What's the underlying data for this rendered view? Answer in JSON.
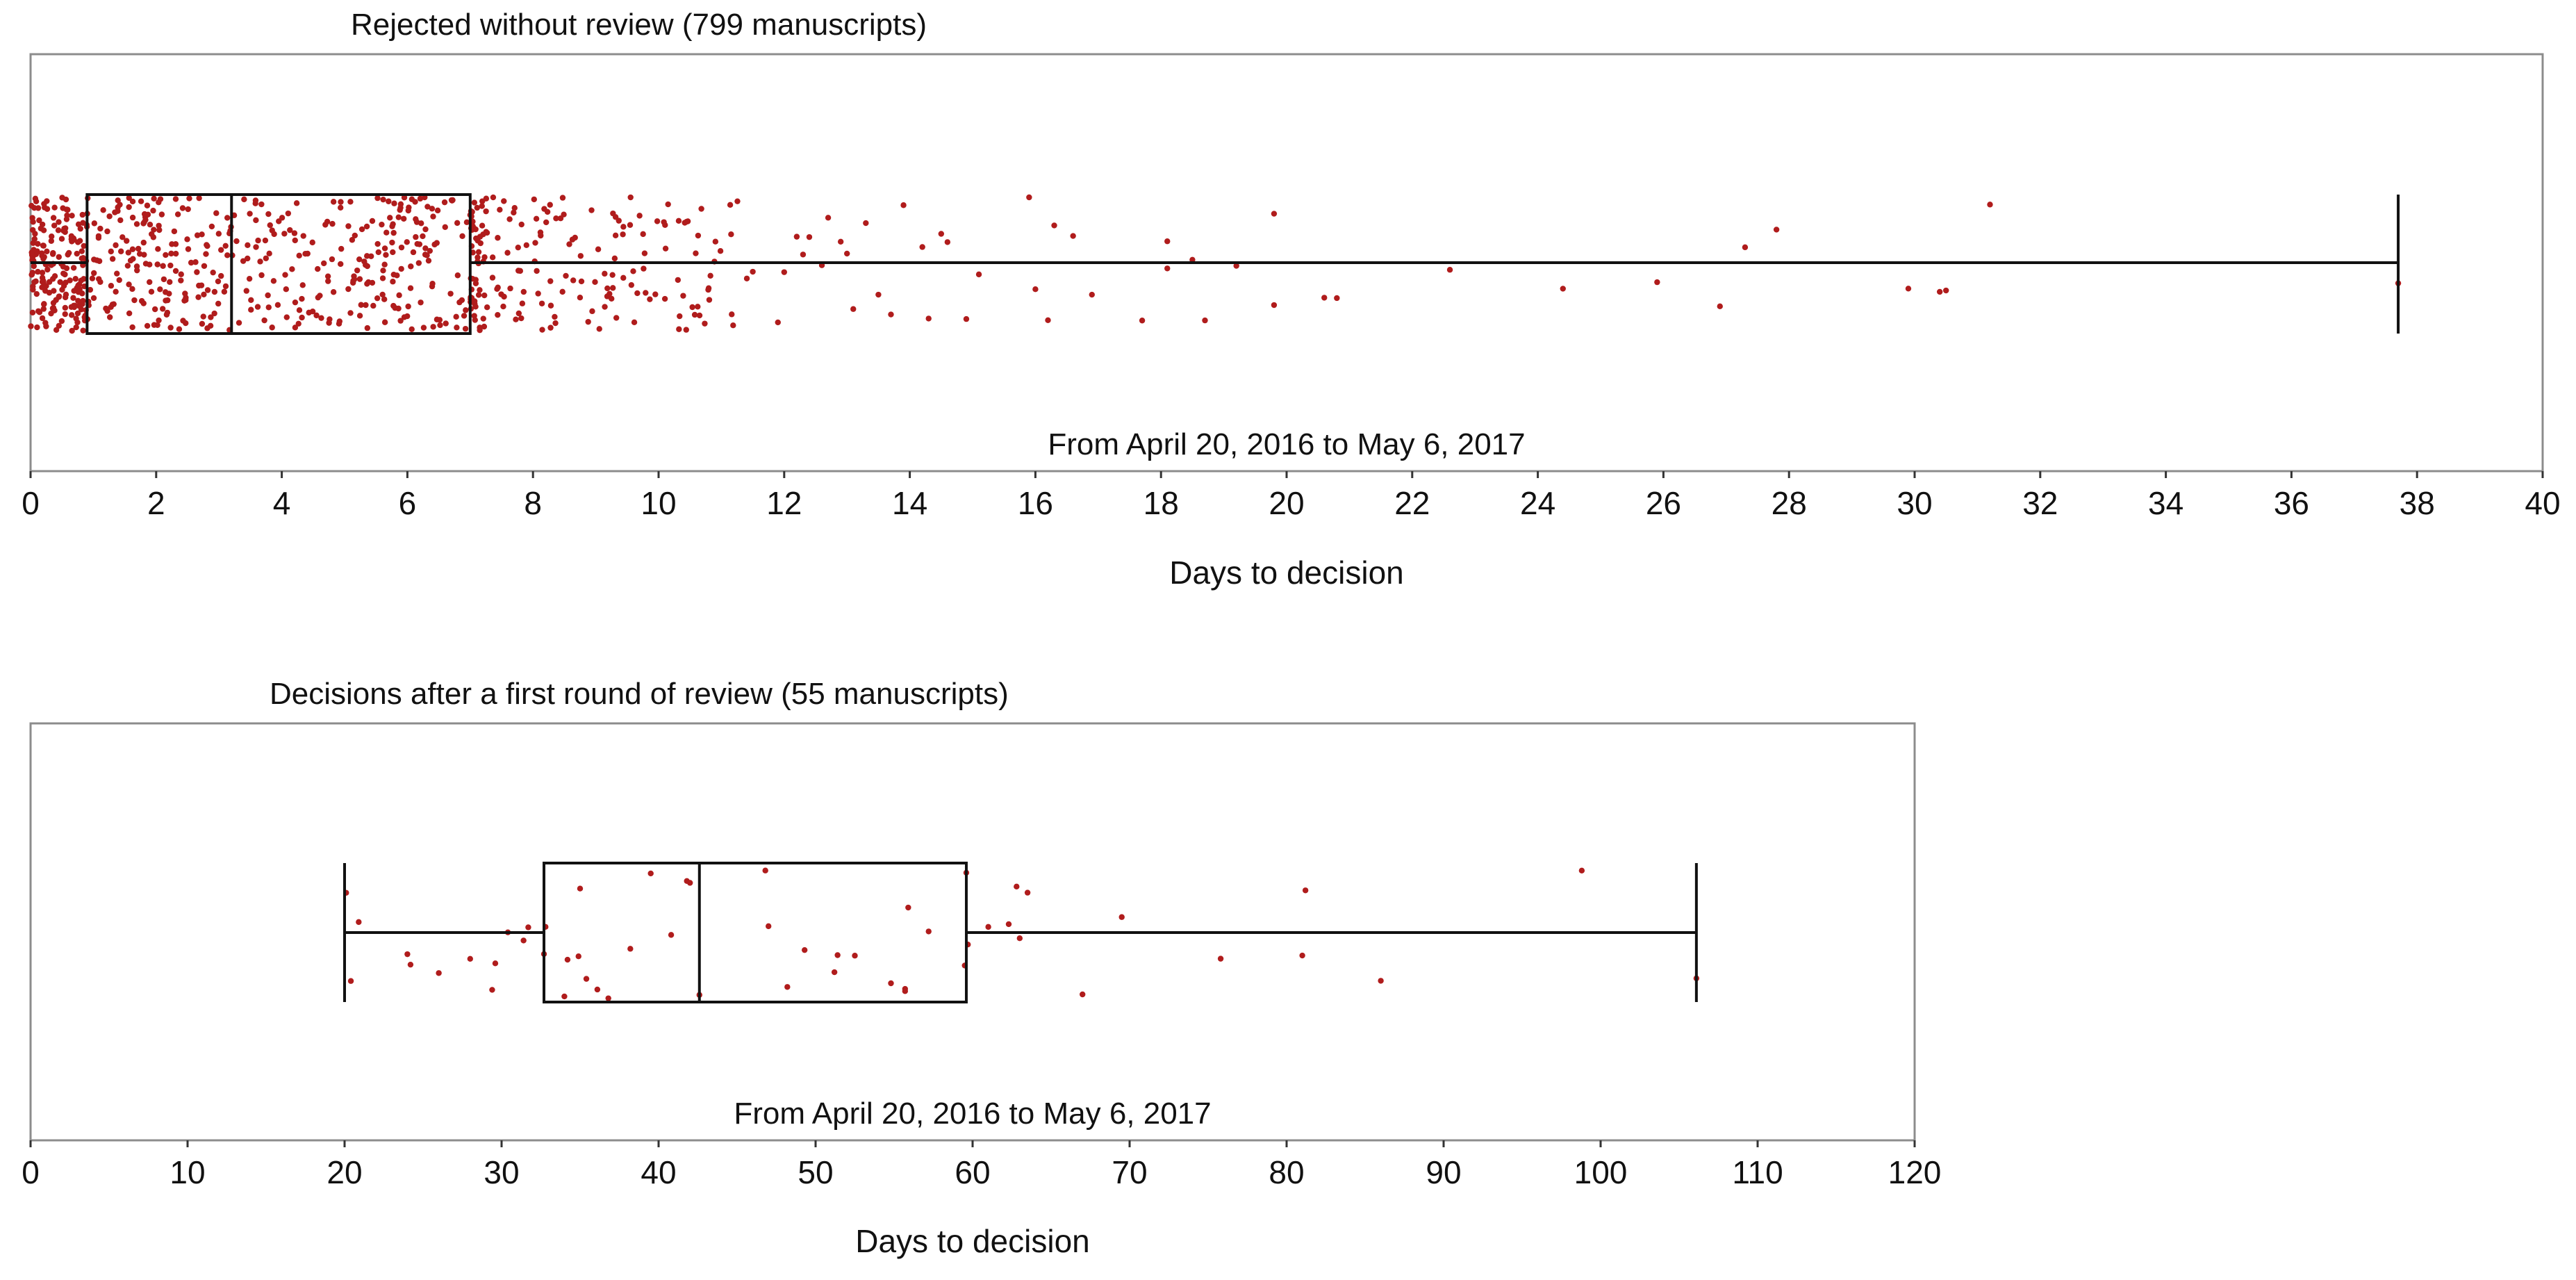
{
  "colors": {
    "point": "#b01c1c",
    "box": "#111111",
    "frame": "#8c8c8c"
  },
  "chart_data": [
    {
      "type": "box",
      "title": "Rejected without review (799 manuscripts)",
      "subtitle": "From April 20, 2016 to May 6, 2017",
      "xlabel": "Days to decision",
      "xlim": [
        0,
        40
      ],
      "xticks": [
        0,
        2,
        4,
        6,
        8,
        10,
        12,
        14,
        16,
        18,
        20,
        22,
        24,
        26,
        28,
        30,
        32,
        34,
        36,
        38,
        40
      ],
      "n": 799,
      "whisker_low": 0,
      "q1": 0.9,
      "median": 3.2,
      "q3": 7.0,
      "whisker_high": 37.7,
      "points": [
        15.9,
        16.2,
        16.6,
        16.3,
        16.9,
        18.1,
        18.1,
        20.6,
        20.8,
        22.6,
        24.4,
        25.9,
        26.9,
        27.8,
        27.3,
        30.4,
        30.5,
        31.2,
        29.9,
        18.5,
        18.7,
        19.8,
        19.8,
        19.2,
        17.7,
        16.0,
        37.7,
        15.1,
        14.9,
        14.3,
        14.2,
        14.6,
        13.1,
        12.9,
        12.7,
        12.4,
        12.3,
        12.2,
        11.9,
        11.5,
        13.5,
        13.7,
        13.9,
        14.5,
        12.0,
        12.6,
        13.0,
        13.3
      ]
    },
    {
      "type": "box",
      "title": "Decisions after a first round of review (55 manuscripts)",
      "subtitle": "From April 20, 2016 to May 6, 2017",
      "xlabel": "Days to decision",
      "xlim": [
        0,
        120
      ],
      "xticks": [
        0,
        10,
        20,
        30,
        40,
        50,
        60,
        70,
        80,
        90,
        100,
        110,
        120
      ],
      "n": 55,
      "whisker_low": 20,
      "q1": 32.7,
      "median": 42.6,
      "q3": 59.6,
      "whisker_high": 106.1,
      "points": [
        20.1,
        20.4,
        20.9,
        24.0,
        24.2,
        26.0,
        28.0,
        29.4,
        29.6,
        30.4,
        31.4,
        31.7,
        32.7,
        32.8,
        34.0,
        34.2,
        34.9,
        35.0,
        35.4,
        36.1,
        36.8,
        38.2,
        39.5,
        40.8,
        41.8,
        42.0,
        42.6,
        46.8,
        47.0,
        48.2,
        49.3,
        51.2,
        51.4,
        52.5,
        54.8,
        55.7,
        55.7,
        55.9,
        57.2,
        59.6,
        59.7,
        59.5,
        61.0,
        62.3,
        62.8,
        63.0,
        63.5,
        67.0,
        69.5,
        75.8,
        81.0,
        81.2,
        86.0,
        98.8,
        106.1
      ]
    }
  ]
}
